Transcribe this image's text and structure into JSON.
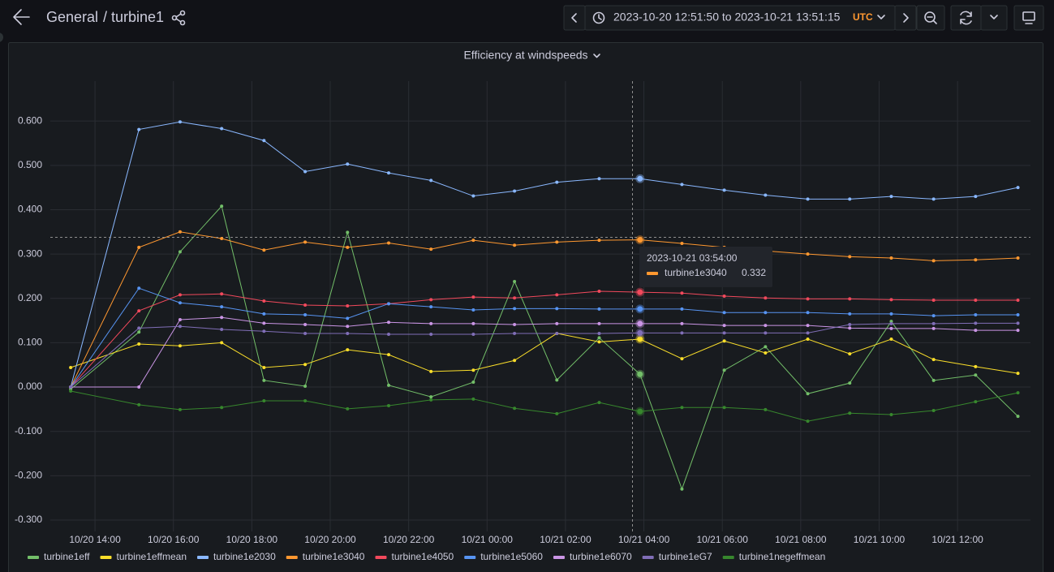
{
  "header": {
    "folder": "General",
    "dashboard": "/ turbine1",
    "time_range": "2023-10-20 12:51:50 to 2023-10-21 13:51:15",
    "timezone": "UTC"
  },
  "chart_data": {
    "type": "line",
    "title": "Efficiency at windspeeds",
    "x": [
      13.38,
      15.12,
      16.17,
      17.23,
      18.31,
      19.36,
      20.44,
      21.49,
      22.57,
      23.65,
      24.7,
      25.78,
      26.86,
      27.9,
      28.97,
      30.05,
      31.1,
      32.18,
      33.25,
      34.31,
      35.39,
      36.46,
      37.54
    ],
    "xlim": [
      12.86,
      37.86
    ],
    "xticks": [
      {
        "value": 14,
        "label": "10/20 14:00"
      },
      {
        "value": 16,
        "label": "10/20 16:00"
      },
      {
        "value": 18,
        "label": "10/20 18:00"
      },
      {
        "value": 20,
        "label": "10/20 20:00"
      },
      {
        "value": 22,
        "label": "10/20 22:00"
      },
      {
        "value": 24,
        "label": "10/21 00:00"
      },
      {
        "value": 26,
        "label": "10/21 02:00"
      },
      {
        "value": 28,
        "label": "10/21 04:00"
      },
      {
        "value": 30,
        "label": "10/21 06:00"
      },
      {
        "value": 32,
        "label": "10/21 08:00"
      },
      {
        "value": 34,
        "label": "10/21 10:00"
      },
      {
        "value": 36,
        "label": "10/21 12:00"
      }
    ],
    "ylim": [
      -0.3,
      0.69
    ],
    "yticks": [
      {
        "value": -0.3,
        "label": "-0.300"
      },
      {
        "value": -0.2,
        "label": "-0.200"
      },
      {
        "value": -0.1,
        "label": "-0.100"
      },
      {
        "value": 0,
        "label": "0.000"
      },
      {
        "value": 0.1,
        "label": "0.100"
      },
      {
        "value": 0.2,
        "label": "0.200"
      },
      {
        "value": 0.3,
        "label": "0.300"
      },
      {
        "value": 0.4,
        "label": "0.400"
      },
      {
        "value": 0.5,
        "label": "0.500"
      },
      {
        "value": 0.6,
        "label": "0.600"
      }
    ],
    "grid": true,
    "legend": "bottom",
    "tooltip_title": "2023-10-21 03:54:00",
    "series": [
      {
        "name": "turbine1eff",
        "color": "#73bf69",
        "values": [
          -0.005,
          0.124,
          0.305,
          0.408,
          0.015,
          0.002,
          0.349,
          0.004,
          -0.022,
          0.011,
          0.238,
          0.016,
          0.111,
          0.029,
          -0.23,
          0.038,
          0.091,
          -0.015,
          0.009,
          0.148,
          0.015,
          0.027,
          -0.066
        ]
      },
      {
        "name": "turbine1effmean",
        "color": "#fade2a",
        "values": [
          0.044,
          0.097,
          0.093,
          0.1,
          0.044,
          0.051,
          0.084,
          0.073,
          0.035,
          0.038,
          0.06,
          0.121,
          0.102,
          0.108,
          0.064,
          0.104,
          0.077,
          0.108,
          0.075,
          0.108,
          0.062,
          0.046,
          0.031
        ]
      },
      {
        "name": "turbine1e2030",
        "color": "#8ab8ff",
        "values": [
          0.0,
          0.581,
          0.598,
          0.583,
          0.556,
          0.486,
          0.503,
          0.483,
          0.466,
          0.431,
          0.442,
          0.462,
          0.47,
          0.47,
          0.457,
          0.444,
          0.433,
          0.424,
          0.424,
          0.43,
          0.424,
          0.43,
          0.45
        ]
      },
      {
        "name": "turbine1e3040",
        "color": "#ff9830",
        "values": [
          0.0,
          0.315,
          0.35,
          0.335,
          0.309,
          0.327,
          0.315,
          0.325,
          0.311,
          0.331,
          0.32,
          0.327,
          0.331,
          0.332,
          0.324,
          0.315,
          0.307,
          0.3,
          0.294,
          0.291,
          0.285,
          0.287,
          0.291
        ]
      },
      {
        "name": "turbine1e4050",
        "color": "#f2495c",
        "values": [
          0.0,
          0.172,
          0.208,
          0.21,
          0.194,
          0.185,
          0.183,
          0.188,
          0.197,
          0.203,
          0.201,
          0.208,
          0.216,
          0.214,
          0.212,
          0.205,
          0.201,
          0.199,
          0.199,
          0.197,
          0.196,
          0.196,
          0.196
        ]
      },
      {
        "name": "turbine1e5060",
        "color": "#5794f2",
        "values": [
          0.0,
          0.223,
          0.19,
          0.181,
          0.165,
          0.163,
          0.155,
          0.188,
          0.181,
          0.174,
          0.177,
          0.177,
          0.176,
          0.176,
          0.176,
          0.168,
          0.168,
          0.168,
          0.165,
          0.165,
          0.161,
          0.163,
          0.163
        ]
      },
      {
        "name": "turbine1e6070",
        "color": "#ca95e5",
        "values": [
          0.0,
          0.0,
          0.152,
          0.157,
          0.144,
          0.141,
          0.137,
          0.146,
          0.143,
          0.143,
          0.141,
          0.143,
          0.143,
          0.143,
          0.143,
          0.139,
          0.139,
          0.139,
          0.133,
          0.132,
          0.132,
          0.128,
          0.128
        ]
      },
      {
        "name": "turbine1eG7",
        "color": "#806eb7",
        "values": [
          0.0,
          0.133,
          0.137,
          0.13,
          0.126,
          0.121,
          0.121,
          0.119,
          0.119,
          0.119,
          0.121,
          0.121,
          0.121,
          0.122,
          0.122,
          0.122,
          0.122,
          0.122,
          0.141,
          0.143,
          0.143,
          0.144,
          0.144
        ]
      },
      {
        "name": "turbine1negeffmean",
        "color": "#37872d",
        "values": [
          -0.009,
          -0.04,
          -0.051,
          -0.046,
          -0.031,
          -0.031,
          -0.049,
          -0.042,
          -0.029,
          -0.027,
          -0.048,
          -0.06,
          -0.035,
          -0.055,
          -0.046,
          -0.046,
          -0.051,
          -0.077,
          -0.059,
          -0.062,
          -0.053,
          -0.033,
          -0.013
        ]
      }
    ]
  }
}
